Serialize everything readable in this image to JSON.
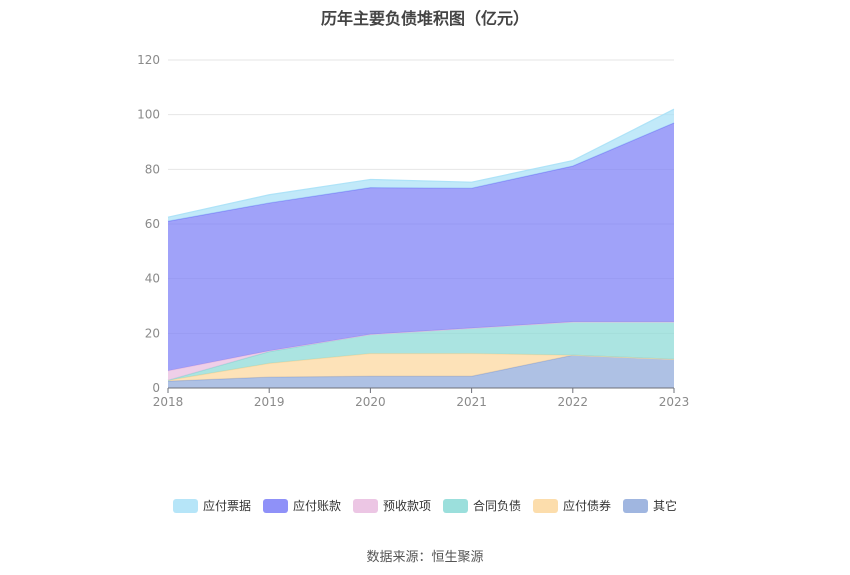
{
  "chart_data": {
    "type": "area",
    "title": "历年主要负债堆积图（亿元）",
    "categories": [
      "2018",
      "2019",
      "2020",
      "2021",
      "2022",
      "2023"
    ],
    "ylim": [
      0,
      120
    ],
    "yticks": [
      0,
      20,
      40,
      60,
      80,
      100,
      120
    ],
    "stacked": true,
    "grid": true,
    "legend_position": "bottom",
    "series": [
      {
        "name": "其它",
        "color": "#8fa9da",
        "values": [
          2.5,
          4,
          4.3,
          4.3,
          12,
          10.5
        ]
      },
      {
        "name": "应付债券",
        "color": "#fcd79d",
        "values": [
          0.3,
          5,
          8.3,
          8.3,
          0,
          0
        ]
      },
      {
        "name": "合同负债",
        "color": "#8ad9d6",
        "values": [
          0,
          4.3,
          7,
          9.3,
          12.2,
          13.7
        ]
      },
      {
        "name": "预收款项",
        "color": "#e9bcdf",
        "values": [
          3.5,
          0.3,
          0,
          0,
          0,
          0
        ]
      },
      {
        "name": "应付账款",
        "color": "#7b7ef7",
        "values": [
          54.7,
          54.1,
          53.7,
          51.2,
          57,
          72.8
        ]
      },
      {
        "name": "应付票据",
        "color": "#a9e1f7",
        "values": [
          1.5,
          3,
          3,
          2.2,
          2,
          5
        ]
      }
    ],
    "legend_order": [
      "应付票据",
      "应付账款",
      "预收款项",
      "合同负债",
      "应付债券",
      "其它"
    ]
  },
  "footer": {
    "source": "数据来源：恒生聚源"
  }
}
